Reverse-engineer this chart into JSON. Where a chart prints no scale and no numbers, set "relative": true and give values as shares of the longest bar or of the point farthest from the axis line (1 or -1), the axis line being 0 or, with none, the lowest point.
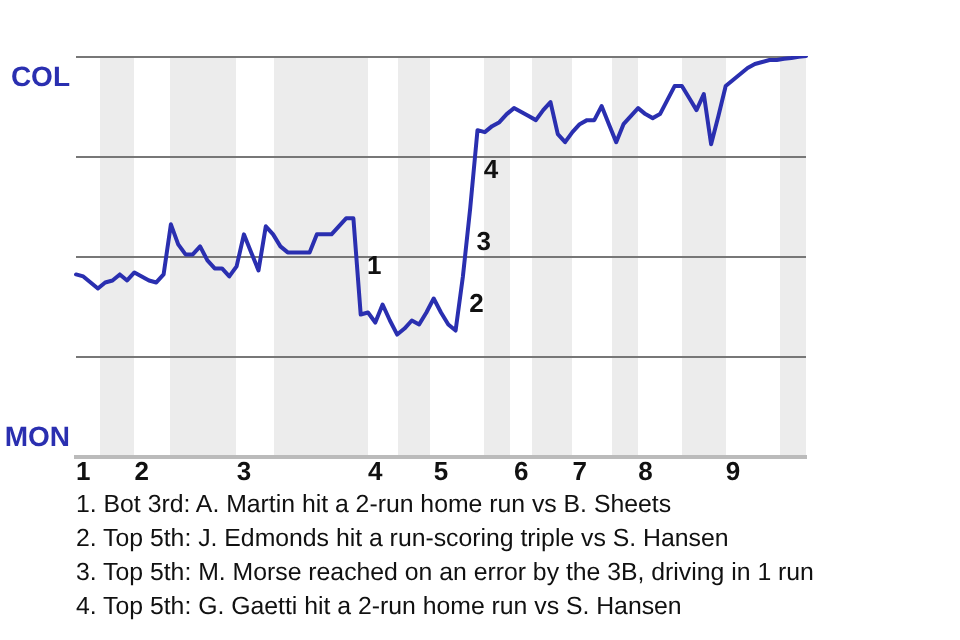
{
  "chart_data": {
    "type": "line",
    "relative": true,
    "categories": [
      null,
      "1",
      null,
      null,
      null,
      null,
      null,
      null,
      null,
      "2",
      null,
      null,
      null,
      null,
      null,
      null,
      null,
      null,
      null,
      null,
      null,
      null,
      null,
      "3",
      null,
      null,
      null,
      null,
      null,
      null,
      null,
      null,
      null,
      null,
      null,
      null,
      null,
      null,
      null,
      null,
      null,
      "4",
      null,
      null,
      null,
      null,
      null,
      null,
      null,
      null,
      "5",
      null,
      null,
      null,
      null,
      null,
      null,
      null,
      null,
      null,
      null,
      "6",
      null,
      null,
      null,
      null,
      null,
      null,
      null,
      "7",
      null,
      null,
      null,
      null,
      null,
      null,
      null,
      null,
      "8",
      null,
      null,
      null,
      null,
      null,
      null,
      null,
      null,
      null,
      null,
      null,
      "9",
      null,
      null,
      null,
      null,
      null,
      null,
      null,
      null,
      null,
      null
    ],
    "series": [
      {
        "color": "#2a2fb0",
        "values": [
          0.455,
          0.45,
          0.435,
          0.42,
          0.435,
          0.44,
          0.455,
          0.44,
          0.46,
          0.45,
          0.44,
          0.435,
          0.455,
          0.58,
          0.53,
          0.505,
          0.505,
          0.525,
          0.49,
          0.47,
          0.47,
          0.45,
          0.475,
          0.555,
          0.51,
          0.465,
          0.575,
          0.555,
          0.525,
          0.51,
          0.51,
          0.51,
          0.51,
          0.555,
          0.555,
          0.555,
          0.575,
          0.595,
          0.595,
          0.355,
          0.36,
          0.335,
          0.38,
          0.34,
          0.305,
          0.32,
          0.34,
          0.33,
          0.36,
          0.395,
          0.36,
          0.33,
          0.315,
          0.45,
          0.62,
          0.815,
          0.81,
          0.825,
          0.835,
          0.855,
          0.87,
          0.86,
          0.85,
          0.84,
          0.865,
          0.885,
          0.805,
          0.785,
          0.81,
          0.83,
          0.84,
          0.84,
          0.875,
          0.83,
          0.785,
          0.83,
          0.85,
          0.87,
          0.855,
          0.845,
          0.855,
          0.89,
          0.925,
          0.925,
          0.895,
          0.865,
          0.905,
          0.78,
          0.85,
          0.925,
          0.94,
          0.955,
          0.97,
          0.98,
          0.985,
          0.99,
          0.99,
          0.993,
          0.995,
          0.998,
          1.0
        ]
      }
    ],
    "marker": "none",
    "annotations": [
      "COL",
      "MON",
      "1",
      "2",
      "3",
      "4",
      "1. Bot 3rd: A. Martin hit a 2-run home run vs B. Sheets",
      "2. Top 5th: J. Edmonds hit a run-scoring triple vs S. Hansen",
      "3. Top 5th: M. Morse reached on an error by the 3B, driving in 1 run",
      "4. Top 5th: G. Gaetti hit a 2-run home run vs S. Hansen"
    ]
  }
}
